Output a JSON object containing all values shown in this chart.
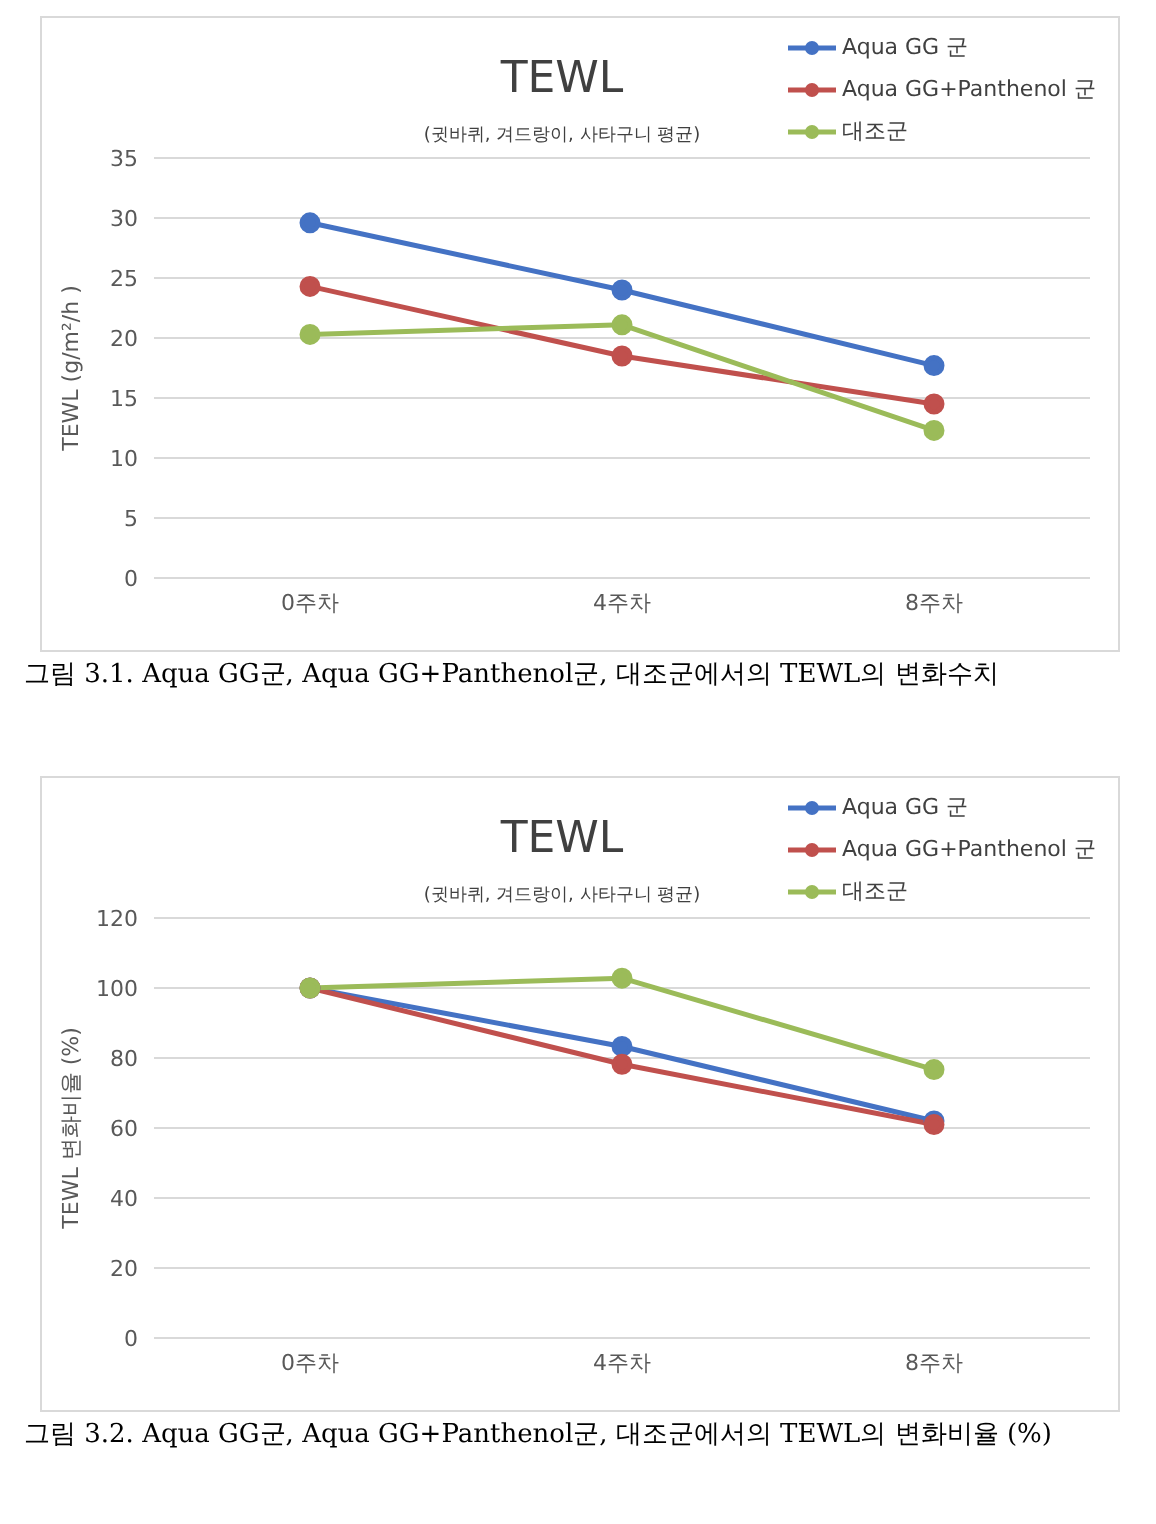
{
  "chart_data": [
    {
      "type": "line",
      "title": "TEWL",
      "subtitle": "(귓바퀴, 겨드랑이, 사타구니 평균)",
      "ylabel": "TEWL (g/m²/h )",
      "categories": [
        "0주차",
        "4주차",
        "8주차"
      ],
      "series": [
        {
          "name": "Aqua GG 군",
          "color": "#4472c4",
          "values": [
            29.6,
            24.0,
            17.7
          ]
        },
        {
          "name": "Aqua GG+Panthenol 군",
          "color": "#c0504d",
          "values": [
            24.3,
            18.5,
            14.5
          ]
        },
        {
          "name": "대조군",
          "color": "#9bbb59",
          "values": [
            20.3,
            21.1,
            12.3
          ]
        }
      ],
      "ylim": [
        0,
        35
      ],
      "yticks": [
        0,
        5,
        10,
        15,
        20,
        25,
        30,
        35
      ],
      "grid": "y",
      "legend": "top right",
      "marker": "circle",
      "line_style": "solid",
      "annotations": [
        "그림 3.1. Aqua GG군, Aqua GG+Panthenol군, 대조군에서의 TEWL의 변화수치"
      ]
    },
    {
      "type": "line",
      "title": "TEWL",
      "subtitle": "(귓바퀴, 겨드랑이, 사타구니 평균)",
      "ylabel": "TEWL 변화비율 (%)",
      "categories": [
        "0주차",
        "4주차",
        "8주차"
      ],
      "series": [
        {
          "name": "Aqua GG 군",
          "color": "#4472c4",
          "values": [
            100,
            83.3,
            62
          ]
        },
        {
          "name": "Aqua GG+Panthenol 군",
          "color": "#c0504d",
          "values": [
            100,
            78.2,
            61
          ]
        },
        {
          "name": "대조군",
          "color": "#9bbb59",
          "values": [
            100,
            102.8,
            76.7
          ]
        }
      ],
      "ylim": [
        0,
        120
      ],
      "yticks": [
        0,
        20,
        40,
        60,
        80,
        100,
        120
      ],
      "grid": "y",
      "legend": "top right",
      "marker": "circle",
      "line_style": "solid",
      "annotations": [
        "그림 3.2. Aqua GG군, Aqua GG+Panthenol군, 대조군에서의 TEWL의 변화비율 (%)"
      ]
    }
  ]
}
